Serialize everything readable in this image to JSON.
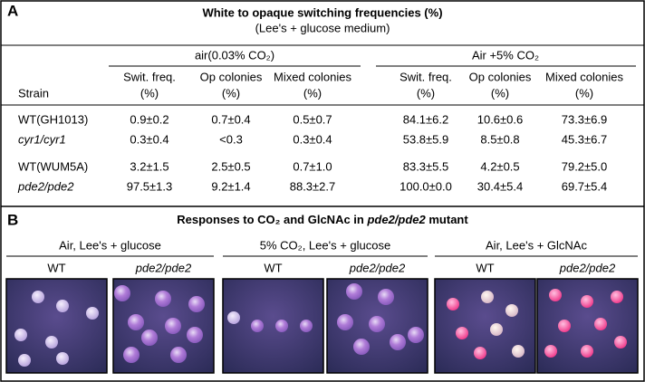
{
  "panelA": {
    "label": "A",
    "title": "White to opaque switching frequencies (%)",
    "subtitle": "(Lee's + glucose medium)",
    "groups": [
      "air(0.03% CO₂)",
      "Air +5% CO₂"
    ],
    "strain_header": "Strain",
    "columns": [
      [
        "Swit. freq.",
        "(%)"
      ],
      [
        "Op colonies",
        "(%)"
      ],
      [
        "Mixed colonies",
        "(%)"
      ],
      [
        "Swit. freq.",
        "(%)"
      ],
      [
        "Op colonies",
        "(%)"
      ],
      [
        "Mixed colonies",
        "(%)"
      ]
    ],
    "rows": [
      {
        "strain": "WT(GH1013)",
        "italic": false,
        "cells": [
          "0.9±0.2",
          "0.7±0.4",
          "0.5±0.7",
          "84.1±6.2",
          "10.6±0.6",
          "73.3±6.9"
        ]
      },
      {
        "strain": "cyr1/cyr1",
        "italic": true,
        "cells": [
          "0.3±0.4",
          "<0.3",
          "0.3±0.4",
          "53.8±5.9",
          "8.5±0.8",
          "45.3±6.7"
        ]
      },
      {
        "strain": "WT(WUM5A)",
        "italic": false,
        "cells": [
          "3.2±1.5",
          "2.5±0.5",
          "0.7±1.0",
          "83.3±5.5",
          "4.2±0.5",
          "79.2±5.0"
        ]
      },
      {
        "strain": "pde2/pde2",
        "italic": true,
        "cells": [
          "97.5±1.3",
          "9.2±1.4",
          "88.3±2.7",
          "100.0±0.0",
          "30.4±5.4",
          "69.7±5.4"
        ]
      }
    ]
  },
  "panelB": {
    "label": "B",
    "title": [
      "Responses to CO₂ and GlcNAc in ",
      "pde2/pde2",
      " mutant"
    ],
    "groups": [
      {
        "title": "Air, Lee's + glucose",
        "labels": [
          "WT",
          "pde2/pde2"
        ]
      },
      {
        "title": "5% CO₂, Lee's + glucose",
        "labels": [
          "WT",
          "pde2/pde2"
        ]
      },
      {
        "title": "Air, Lee's + GlcNAc",
        "labels": [
          "WT",
          "pde2/pde2"
        ]
      }
    ]
  }
}
